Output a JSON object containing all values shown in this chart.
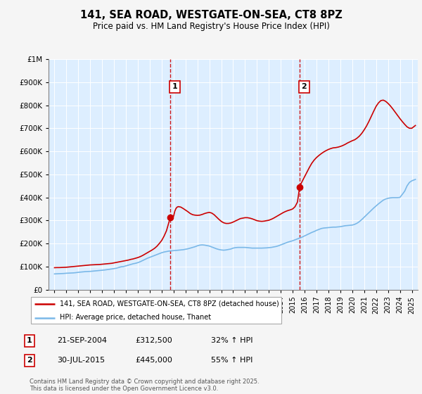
{
  "title": "141, SEA ROAD, WESTGATE-ON-SEA, CT8 8PZ",
  "subtitle": "Price paid vs. HM Land Registry's House Price Index (HPI)",
  "legend_line1": "141, SEA ROAD, WESTGATE-ON-SEA, CT8 8PZ (detached house)",
  "legend_line2": "HPI: Average price, detached house, Thanet",
  "sale1_label": "1",
  "sale1_date": "21-SEP-2004",
  "sale1_price": "£312,500",
  "sale1_pct": "32% ↑ HPI",
  "sale2_label": "2",
  "sale2_date": "30-JUL-2015",
  "sale2_price": "£445,000",
  "sale2_pct": "55% ↑ HPI",
  "footer": "Contains HM Land Registry data © Crown copyright and database right 2025.\nThis data is licensed under the Open Government Licence v3.0.",
  "sale1_year": 2004.72,
  "sale1_value": 312500,
  "sale2_year": 2015.58,
  "sale2_value": 445000,
  "hpi_color": "#7ab8e8",
  "property_color": "#cc0000",
  "sale_marker_color": "#cc0000",
  "vline_color": "#cc0000",
  "plot_bg_color": "#ddeeff",
  "fig_bg_color": "#f5f5f5",
  "ylim": [
    0,
    1000000
  ],
  "xlim_start": 1994.5,
  "xlim_end": 2025.5,
  "xticks": [
    1995,
    1996,
    1997,
    1998,
    1999,
    2000,
    2001,
    2002,
    2003,
    2004,
    2005,
    2006,
    2007,
    2008,
    2009,
    2010,
    2011,
    2012,
    2013,
    2014,
    2015,
    2016,
    2017,
    2018,
    2019,
    2020,
    2021,
    2022,
    2023,
    2024,
    2025
  ],
  "yticks": [
    0,
    100000,
    200000,
    300000,
    400000,
    500000,
    600000,
    700000,
    800000,
    900000,
    1000000
  ],
  "hpi_data": [
    [
      1995.0,
      68000
    ],
    [
      1995.2,
      68500
    ],
    [
      1995.4,
      69000
    ],
    [
      1995.6,
      69500
    ],
    [
      1995.8,
      70000
    ],
    [
      1996.0,
      71000
    ],
    [
      1996.2,
      71500
    ],
    [
      1996.4,
      72000
    ],
    [
      1996.6,
      72500
    ],
    [
      1996.8,
      73500
    ],
    [
      1997.0,
      75000
    ],
    [
      1997.2,
      76000
    ],
    [
      1997.4,
      77000
    ],
    [
      1997.6,
      78000
    ],
    [
      1997.8,
      78500
    ],
    [
      1998.0,
      79000
    ],
    [
      1998.2,
      80000
    ],
    [
      1998.4,
      81000
    ],
    [
      1998.6,
      82000
    ],
    [
      1998.8,
      83000
    ],
    [
      1999.0,
      84000
    ],
    [
      1999.2,
      85000
    ],
    [
      1999.4,
      86500
    ],
    [
      1999.6,
      88000
    ],
    [
      1999.8,
      89500
    ],
    [
      2000.0,
      91000
    ],
    [
      2000.2,
      93000
    ],
    [
      2000.4,
      96000
    ],
    [
      2000.6,
      99000
    ],
    [
      2000.8,
      100000
    ],
    [
      2001.0,
      103000
    ],
    [
      2001.2,
      106000
    ],
    [
      2001.4,
      109000
    ],
    [
      2001.6,
      112000
    ],
    [
      2001.8,
      114000
    ],
    [
      2002.0,
      117000
    ],
    [
      2002.2,
      121000
    ],
    [
      2002.4,
      126000
    ],
    [
      2002.6,
      131000
    ],
    [
      2002.8,
      136000
    ],
    [
      2003.0,
      140000
    ],
    [
      2003.2,
      144000
    ],
    [
      2003.4,
      148000
    ],
    [
      2003.6,
      152000
    ],
    [
      2003.8,
      156000
    ],
    [
      2004.0,
      160000
    ],
    [
      2004.2,
      163000
    ],
    [
      2004.4,
      165000
    ],
    [
      2004.6,
      167000
    ],
    [
      2004.8,
      168000
    ],
    [
      2005.0,
      169000
    ],
    [
      2005.2,
      170000
    ],
    [
      2005.4,
      171000
    ],
    [
      2005.6,
      172000
    ],
    [
      2005.8,
      173000
    ],
    [
      2006.0,
      175000
    ],
    [
      2006.2,
      177000
    ],
    [
      2006.4,
      180000
    ],
    [
      2006.6,
      183000
    ],
    [
      2006.8,
      186000
    ],
    [
      2007.0,
      190000
    ],
    [
      2007.2,
      193000
    ],
    [
      2007.4,
      194000
    ],
    [
      2007.6,
      193000
    ],
    [
      2007.8,
      191000
    ],
    [
      2008.0,
      189000
    ],
    [
      2008.2,
      185000
    ],
    [
      2008.4,
      181000
    ],
    [
      2008.6,
      177000
    ],
    [
      2008.8,
      174000
    ],
    [
      2009.0,
      172000
    ],
    [
      2009.2,
      171000
    ],
    [
      2009.4,
      172000
    ],
    [
      2009.6,
      174000
    ],
    [
      2009.8,
      176000
    ],
    [
      2010.0,
      180000
    ],
    [
      2010.2,
      182000
    ],
    [
      2010.4,
      183000
    ],
    [
      2010.6,
      183000
    ],
    [
      2010.8,
      183000
    ],
    [
      2011.0,
      183000
    ],
    [
      2011.2,
      182000
    ],
    [
      2011.4,
      181000
    ],
    [
      2011.6,
      180000
    ],
    [
      2011.8,
      180000
    ],
    [
      2012.0,
      180000
    ],
    [
      2012.2,
      180000
    ],
    [
      2012.4,
      180000
    ],
    [
      2012.6,
      180500
    ],
    [
      2012.8,
      181000
    ],
    [
      2013.0,
      182000
    ],
    [
      2013.2,
      183000
    ],
    [
      2013.4,
      185000
    ],
    [
      2013.6,
      187000
    ],
    [
      2013.8,
      190000
    ],
    [
      2014.0,
      194000
    ],
    [
      2014.2,
      198000
    ],
    [
      2014.4,
      202000
    ],
    [
      2014.6,
      206000
    ],
    [
      2014.8,
      209000
    ],
    [
      2015.0,
      212000
    ],
    [
      2015.2,
      216000
    ],
    [
      2015.4,
      220000
    ],
    [
      2015.6,
      224000
    ],
    [
      2015.8,
      228000
    ],
    [
      2016.0,
      233000
    ],
    [
      2016.2,
      238000
    ],
    [
      2016.4,
      243000
    ],
    [
      2016.6,
      248000
    ],
    [
      2016.8,
      252000
    ],
    [
      2017.0,
      257000
    ],
    [
      2017.2,
      261000
    ],
    [
      2017.4,
      265000
    ],
    [
      2017.6,
      267000
    ],
    [
      2017.8,
      268000
    ],
    [
      2018.0,
      269000
    ],
    [
      2018.2,
      270000
    ],
    [
      2018.4,
      271000
    ],
    [
      2018.6,
      271000
    ],
    [
      2018.8,
      272000
    ],
    [
      2019.0,
      273000
    ],
    [
      2019.2,
      275000
    ],
    [
      2019.4,
      277000
    ],
    [
      2019.6,
      278000
    ],
    [
      2019.8,
      279000
    ],
    [
      2020.0,
      280000
    ],
    [
      2020.2,
      283000
    ],
    [
      2020.4,
      288000
    ],
    [
      2020.6,
      295000
    ],
    [
      2020.8,
      304000
    ],
    [
      2021.0,
      314000
    ],
    [
      2021.2,
      324000
    ],
    [
      2021.4,
      334000
    ],
    [
      2021.6,
      344000
    ],
    [
      2021.8,
      354000
    ],
    [
      2022.0,
      363000
    ],
    [
      2022.2,
      372000
    ],
    [
      2022.4,
      380000
    ],
    [
      2022.6,
      388000
    ],
    [
      2022.8,
      393000
    ],
    [
      2023.0,
      396000
    ],
    [
      2023.2,
      398000
    ],
    [
      2023.4,
      399000
    ],
    [
      2023.6,
      399000
    ],
    [
      2023.8,
      399000
    ],
    [
      2024.0,
      400000
    ],
    [
      2024.2,
      413000
    ],
    [
      2024.4,
      427000
    ],
    [
      2024.6,
      450000
    ],
    [
      2024.8,
      465000
    ],
    [
      2025.0,
      472000
    ],
    [
      2025.3,
      478000
    ]
  ],
  "property_data": [
    [
      1995.0,
      95000
    ],
    [
      1995.2,
      95500
    ],
    [
      1995.4,
      95500
    ],
    [
      1995.6,
      96000
    ],
    [
      1995.8,
      96500
    ],
    [
      1996.0,
      97000
    ],
    [
      1996.2,
      98000
    ],
    [
      1996.4,
      99000
    ],
    [
      1996.6,
      100000
    ],
    [
      1996.8,
      101000
    ],
    [
      1997.0,
      102000
    ],
    [
      1997.2,
      103000
    ],
    [
      1997.4,
      104000
    ],
    [
      1997.6,
      105000
    ],
    [
      1997.8,
      106000
    ],
    [
      1998.0,
      107000
    ],
    [
      1998.2,
      107500
    ],
    [
      1998.4,
      108000
    ],
    [
      1998.6,
      108500
    ],
    [
      1998.8,
      109000
    ],
    [
      1999.0,
      110000
    ],
    [
      1999.2,
      111000
    ],
    [
      1999.4,
      112000
    ],
    [
      1999.6,
      113000
    ],
    [
      1999.8,
      114000
    ],
    [
      2000.0,
      116000
    ],
    [
      2000.2,
      118000
    ],
    [
      2000.4,
      120000
    ],
    [
      2000.6,
      122000
    ],
    [
      2000.8,
      124000
    ],
    [
      2001.0,
      126000
    ],
    [
      2001.2,
      128000
    ],
    [
      2001.4,
      131000
    ],
    [
      2001.6,
      133000
    ],
    [
      2001.8,
      136000
    ],
    [
      2002.0,
      139000
    ],
    [
      2002.2,
      143000
    ],
    [
      2002.4,
      148000
    ],
    [
      2002.6,
      154000
    ],
    [
      2002.8,
      160000
    ],
    [
      2003.0,
      166000
    ],
    [
      2003.2,
      172000
    ],
    [
      2003.4,
      179000
    ],
    [
      2003.6,
      188000
    ],
    [
      2003.8,
      200000
    ],
    [
      2004.0,
      213000
    ],
    [
      2004.2,
      232000
    ],
    [
      2004.4,
      255000
    ],
    [
      2004.72,
      312500
    ],
    [
      2005.0,
      318000
    ],
    [
      2005.1,
      340000
    ],
    [
      2005.2,
      352000
    ],
    [
      2005.3,
      358000
    ],
    [
      2005.4,
      360000
    ],
    [
      2005.6,
      358000
    ],
    [
      2005.8,
      352000
    ],
    [
      2006.0,
      345000
    ],
    [
      2006.2,
      338000
    ],
    [
      2006.4,
      330000
    ],
    [
      2006.6,
      325000
    ],
    [
      2006.8,
      323000
    ],
    [
      2007.0,
      322000
    ],
    [
      2007.2,
      323000
    ],
    [
      2007.4,
      326000
    ],
    [
      2007.6,
      330000
    ],
    [
      2007.8,
      333000
    ],
    [
      2008.0,
      335000
    ],
    [
      2008.2,
      332000
    ],
    [
      2008.4,
      325000
    ],
    [
      2008.6,
      315000
    ],
    [
      2008.8,
      305000
    ],
    [
      2009.0,
      296000
    ],
    [
      2009.2,
      290000
    ],
    [
      2009.4,
      287000
    ],
    [
      2009.6,
      287000
    ],
    [
      2009.8,
      289000
    ],
    [
      2010.0,
      293000
    ],
    [
      2010.2,
      298000
    ],
    [
      2010.4,
      303000
    ],
    [
      2010.6,
      308000
    ],
    [
      2010.8,
      310000
    ],
    [
      2011.0,
      312000
    ],
    [
      2011.2,
      312000
    ],
    [
      2011.4,
      310000
    ],
    [
      2011.6,
      307000
    ],
    [
      2011.8,
      303000
    ],
    [
      2012.0,
      299000
    ],
    [
      2012.2,
      297000
    ],
    [
      2012.4,
      296000
    ],
    [
      2012.6,
      297000
    ],
    [
      2012.8,
      299000
    ],
    [
      2013.0,
      301000
    ],
    [
      2013.2,
      305000
    ],
    [
      2013.4,
      310000
    ],
    [
      2013.6,
      316000
    ],
    [
      2013.8,
      322000
    ],
    [
      2014.0,
      328000
    ],
    [
      2014.2,
      334000
    ],
    [
      2014.4,
      339000
    ],
    [
      2014.6,
      343000
    ],
    [
      2014.8,
      346000
    ],
    [
      2015.0,
      350000
    ],
    [
      2015.2,
      360000
    ],
    [
      2015.4,
      380000
    ],
    [
      2015.58,
      445000
    ],
    [
      2015.7,
      460000
    ],
    [
      2015.8,
      470000
    ],
    [
      2016.0,
      490000
    ],
    [
      2016.2,
      510000
    ],
    [
      2016.4,
      530000
    ],
    [
      2016.6,
      548000
    ],
    [
      2016.8,
      562000
    ],
    [
      2017.0,
      573000
    ],
    [
      2017.2,
      582000
    ],
    [
      2017.4,
      590000
    ],
    [
      2017.6,
      597000
    ],
    [
      2017.8,
      603000
    ],
    [
      2018.0,
      608000
    ],
    [
      2018.2,
      612000
    ],
    [
      2018.4,
      615000
    ],
    [
      2018.6,
      616000
    ],
    [
      2018.8,
      618000
    ],
    [
      2019.0,
      621000
    ],
    [
      2019.2,
      625000
    ],
    [
      2019.4,
      630000
    ],
    [
      2019.6,
      636000
    ],
    [
      2019.8,
      641000
    ],
    [
      2020.0,
      646000
    ],
    [
      2020.2,
      650000
    ],
    [
      2020.4,
      657000
    ],
    [
      2020.6,
      666000
    ],
    [
      2020.8,
      678000
    ],
    [
      2021.0,
      693000
    ],
    [
      2021.2,
      710000
    ],
    [
      2021.4,
      730000
    ],
    [
      2021.6,
      752000
    ],
    [
      2021.8,
      774000
    ],
    [
      2022.0,
      795000
    ],
    [
      2022.2,
      810000
    ],
    [
      2022.4,
      820000
    ],
    [
      2022.6,
      822000
    ],
    [
      2022.8,
      817000
    ],
    [
      2023.0,
      808000
    ],
    [
      2023.2,
      797000
    ],
    [
      2023.4,
      784000
    ],
    [
      2023.6,
      770000
    ],
    [
      2023.8,
      756000
    ],
    [
      2024.0,
      742000
    ],
    [
      2024.2,
      729000
    ],
    [
      2024.4,
      717000
    ],
    [
      2024.6,
      706000
    ],
    [
      2024.8,
      700000
    ],
    [
      2025.0,
      700000
    ],
    [
      2025.3,
      712000
    ]
  ]
}
